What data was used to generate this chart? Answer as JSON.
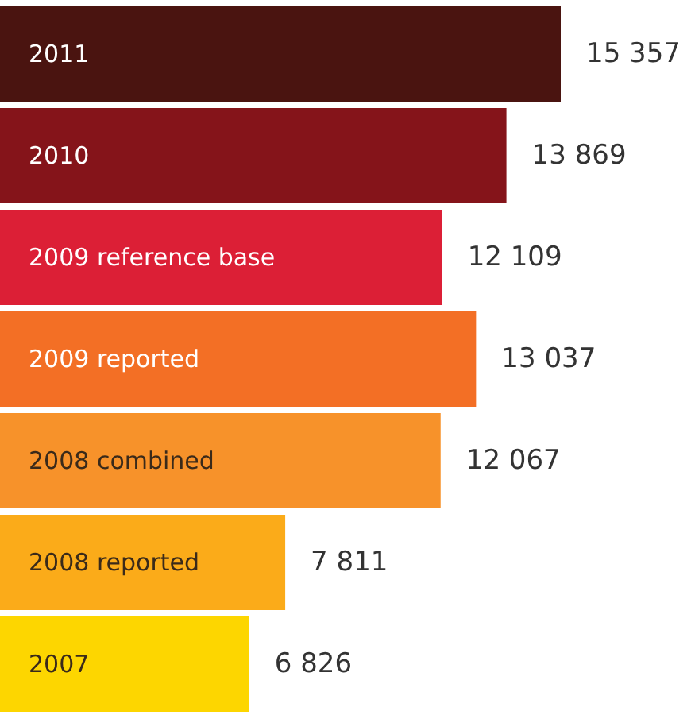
{
  "chart_data": {
    "type": "bar",
    "orientation": "horizontal",
    "categories": [
      "2011",
      "2010",
      "2009 reference base",
      "2009 reported",
      "2008 combined",
      "2008 reported",
      "2007"
    ],
    "values": [
      15357,
      13869,
      12109,
      13037,
      12067,
      7811,
      6826
    ],
    "colors": [
      "#4a1410",
      "#85141a",
      "#dc1f36",
      "#f36f25",
      "#f7922a",
      "#fbab19",
      "#fdd600"
    ],
    "value_labels": [
      "15 357",
      "13 869",
      "12 109",
      "13 037",
      "12 067",
      "7 811",
      "6 826"
    ]
  }
}
